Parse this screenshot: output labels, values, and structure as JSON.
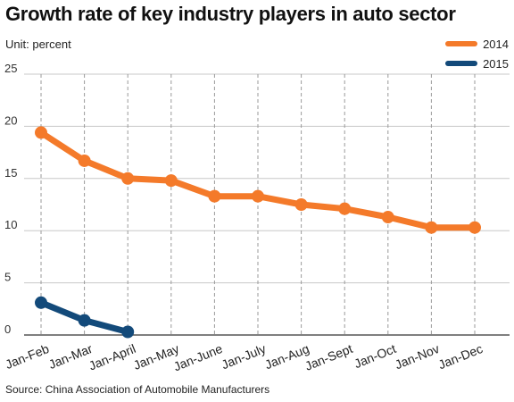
{
  "title": "Growth rate of key industry players in auto sector",
  "unit_label": "Unit: percent",
  "source": "Source: China Association of Automobile Manufacturers",
  "chart_data": {
    "type": "line",
    "categories": [
      "Jan-Feb",
      "Jan-Mar",
      "Jan-April",
      "Jan-May",
      "Jan-June",
      "Jan-July",
      "Jan-Aug",
      "Jan-Sept",
      "Jan-Oct",
      "Jan-Nov",
      "Jan-Dec"
    ],
    "ylim": [
      0,
      25
    ],
    "yticks": [
      0,
      5,
      10,
      15,
      20,
      25
    ],
    "grid": true,
    "legend": "top-right",
    "series": [
      {
        "name": "2014",
        "color": "#f47a2a",
        "values": [
          19.4,
          16.7,
          15.0,
          14.8,
          13.3,
          13.3,
          12.5,
          12.1,
          11.3,
          10.3,
          10.3
        ]
      },
      {
        "name": "2015",
        "color": "#134a7a",
        "values": [
          3.1,
          1.4,
          0.3,
          null,
          null,
          null,
          null,
          null,
          null,
          null,
          null
        ]
      }
    ]
  }
}
